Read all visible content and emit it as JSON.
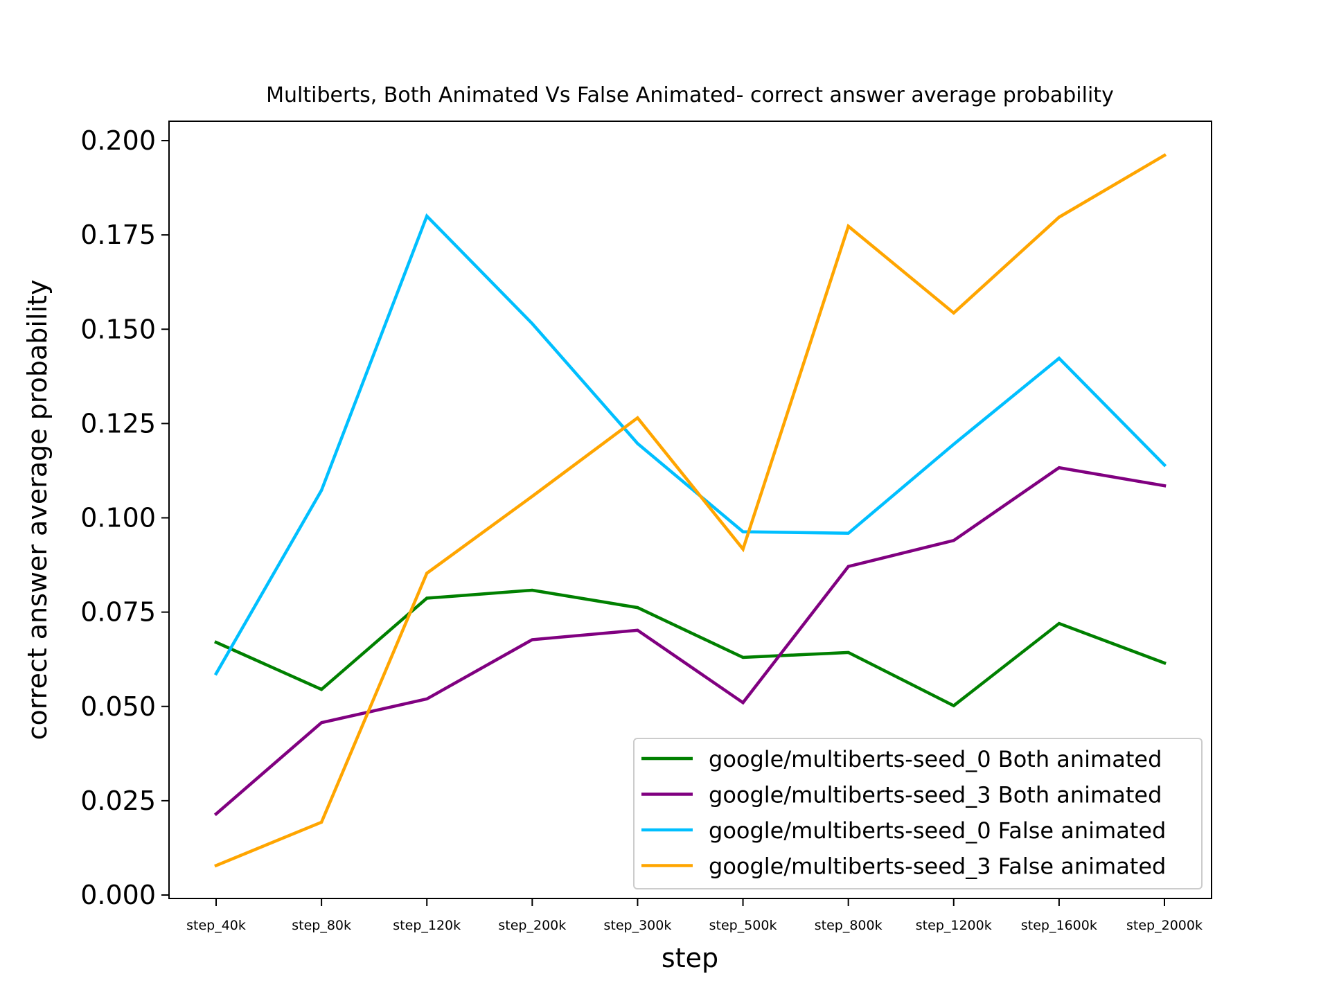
{
  "chart_data": {
    "type": "line",
    "title": "Multiberts, Both Animated Vs False Animated- correct answer average probability",
    "xlabel": "step",
    "ylabel": "correct answer average probability",
    "categories": [
      "step_40k",
      "step_80k",
      "step_120k",
      "step_200k",
      "step_300k",
      "step_500k",
      "step_800k",
      "step_1200k",
      "step_1600k",
      "step_2000k"
    ],
    "ylim": [
      0,
      0.2
    ],
    "yticks": [
      "0.000",
      "0.025",
      "0.050",
      "0.075",
      "0.100",
      "0.125",
      "0.150",
      "0.175",
      "0.200"
    ],
    "legend_position": "lower-right",
    "grid": false,
    "series": [
      {
        "name": "google/multiberts-seed_0 Both animated",
        "color": "#008000",
        "values": [
          0.067,
          0.0545,
          0.0787,
          0.0808,
          0.0762,
          0.063,
          0.0643,
          0.0502,
          0.072,
          0.0615
        ]
      },
      {
        "name": "google/multiberts-seed_3 Both animated",
        "color": "#800080",
        "values": [
          0.0215,
          0.0457,
          0.052,
          0.0677,
          0.0702,
          0.051,
          0.0871,
          0.094,
          0.1133,
          0.1085
        ]
      },
      {
        "name": "google/multiberts-seed_0 False animated",
        "color": "#00BFFF",
        "values": [
          0.0587,
          0.1073,
          0.18,
          0.1515,
          0.1197,
          0.0963,
          0.0959,
          0.1195,
          0.1423,
          0.114
        ]
      },
      {
        "name": "google/multiberts-seed_3 False animated",
        "color": "#FFA500",
        "values": [
          0.0078,
          0.0193,
          0.0853,
          0.1057,
          0.1265,
          0.0917,
          0.1773,
          0.1543,
          0.1797,
          0.1961
        ]
      }
    ]
  }
}
